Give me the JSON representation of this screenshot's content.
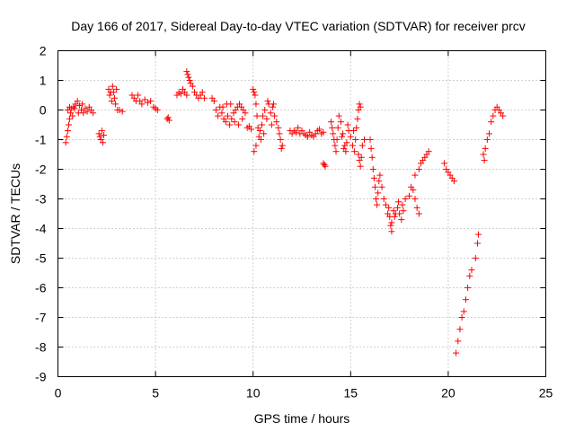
{
  "chart_data": {
    "type": "scatter",
    "title": "Day 166 of 2017, Sidereal Day-to-day VTEC variation (SDTVAR) for receiver prcv",
    "xlabel": "GPS time / hours",
    "ylabel": "SDTVAR / TECUs",
    "xlim": [
      0,
      25
    ],
    "ylim": [
      -9,
      2
    ],
    "xticks": [
      0,
      5,
      10,
      15,
      20,
      25
    ],
    "xtick_labels": [
      "0",
      "5",
      "10",
      "15",
      "20",
      "25"
    ],
    "yticks": [
      2,
      1,
      0,
      -1,
      -2,
      -3,
      -4,
      -5,
      -6,
      -7,
      -8,
      -9
    ],
    "ytick_labels": [
      "2",
      "1",
      "0",
      "-1",
      "-2",
      "-3",
      "-4",
      "-5",
      "-6",
      "-7",
      "-8",
      "-9"
    ],
    "grid": true,
    "marker": "+",
    "marker_color": "#ff0000",
    "series": [
      {
        "name": "prcv",
        "points": [
          [
            0.4,
            -1.1
          ],
          [
            0.45,
            -0.9
          ],
          [
            0.5,
            -0.7
          ],
          [
            0.55,
            -0.5
          ],
          [
            0.6,
            -0.3
          ],
          [
            0.65,
            -0.1
          ],
          [
            0.7,
            0.05
          ],
          [
            0.8,
            0.1
          ],
          [
            0.9,
            0.2
          ],
          [
            1.0,
            0.3
          ],
          [
            1.1,
            0.15
          ],
          [
            1.2,
            0.0
          ],
          [
            1.3,
            -0.1
          ],
          [
            1.4,
            0.05
          ],
          [
            1.5,
            -0.05
          ],
          [
            1.6,
            0.1
          ],
          [
            1.7,
            0.0
          ],
          [
            1.8,
            -0.1
          ],
          [
            0.5,
            0.0
          ],
          [
            0.6,
            0.1
          ],
          [
            0.75,
            -0.2
          ],
          [
            0.85,
            0.05
          ],
          [
            1.05,
            -0.1
          ],
          [
            1.25,
            0.2
          ],
          [
            2.1,
            -0.8
          ],
          [
            2.15,
            -0.9
          ],
          [
            2.2,
            -1.0
          ],
          [
            2.25,
            -0.7
          ],
          [
            2.3,
            -1.1
          ],
          [
            2.35,
            -0.85
          ],
          [
            2.6,
            0.7
          ],
          [
            2.65,
            0.5
          ],
          [
            2.7,
            0.6
          ],
          [
            2.8,
            0.8
          ],
          [
            2.9,
            0.4
          ],
          [
            3.0,
            0.7
          ],
          [
            2.75,
            0.3
          ],
          [
            2.85,
            0.6
          ],
          [
            2.95,
            0.2
          ],
          [
            3.05,
            0.0
          ],
          [
            3.15,
            0.0
          ],
          [
            3.3,
            -0.05
          ],
          [
            3.8,
            0.5
          ],
          [
            3.9,
            0.4
          ],
          [
            4.0,
            0.3
          ],
          [
            4.1,
            0.5
          ],
          [
            4.2,
            0.3
          ],
          [
            4.3,
            0.2
          ],
          [
            4.45,
            0.35
          ],
          [
            4.6,
            0.25
          ],
          [
            4.75,
            0.3
          ],
          [
            4.9,
            0.1
          ],
          [
            5.0,
            0.05
          ],
          [
            5.1,
            0.0
          ],
          [
            5.6,
            -0.3
          ],
          [
            5.65,
            -0.25
          ],
          [
            5.7,
            -0.35
          ],
          [
            6.1,
            0.5
          ],
          [
            6.2,
            0.6
          ],
          [
            6.3,
            0.55
          ],
          [
            6.4,
            0.7
          ],
          [
            6.5,
            0.6
          ],
          [
            6.6,
            0.5
          ],
          [
            6.6,
            1.3
          ],
          [
            6.65,
            1.2
          ],
          [
            6.7,
            1.1
          ],
          [
            6.75,
            1.0
          ],
          [
            6.8,
            0.9
          ],
          [
            6.9,
            0.8
          ],
          [
            7.0,
            0.6
          ],
          [
            7.1,
            0.5
          ],
          [
            7.2,
            0.4
          ],
          [
            7.3,
            0.5
          ],
          [
            7.4,
            0.6
          ],
          [
            7.5,
            0.4
          ],
          [
            7.9,
            0.4
          ],
          [
            8.0,
            0.3
          ],
          [
            8.1,
            0.0
          ],
          [
            8.2,
            -0.2
          ],
          [
            8.3,
            0.1
          ],
          [
            8.4,
            -0.1
          ],
          [
            8.5,
            -0.3
          ],
          [
            8.6,
            -0.4
          ],
          [
            8.7,
            -0.2
          ],
          [
            8.8,
            -0.5
          ],
          [
            8.9,
            -0.3
          ],
          [
            9.0,
            -0.1
          ],
          [
            9.1,
            0.0
          ],
          [
            9.2,
            0.1
          ],
          [
            9.3,
            0.2
          ],
          [
            9.4,
            0.1
          ],
          [
            9.5,
            0.0
          ],
          [
            9.6,
            -0.1
          ],
          [
            8.45,
            0.1
          ],
          [
            8.65,
            0.2
          ],
          [
            8.85,
            0.2
          ],
          [
            9.05,
            -0.4
          ],
          [
            9.25,
            -0.5
          ],
          [
            9.45,
            -0.3
          ],
          [
            9.7,
            -0.6
          ],
          [
            9.8,
            -0.55
          ],
          [
            9.9,
            -0.65
          ],
          [
            10.0,
            0.7
          ],
          [
            10.05,
            0.6
          ],
          [
            10.1,
            0.5
          ],
          [
            10.15,
            0.2
          ],
          [
            10.2,
            -0.2
          ],
          [
            10.25,
            -0.6
          ],
          [
            10.3,
            -0.9
          ],
          [
            10.35,
            -0.7
          ],
          [
            10.4,
            -1.0
          ],
          [
            10.45,
            -0.5
          ],
          [
            10.5,
            -0.2
          ],
          [
            10.6,
            0.0
          ],
          [
            10.7,
            -0.3
          ],
          [
            10.8,
            0.2
          ],
          [
            10.9,
            -0.1
          ],
          [
            11.0,
            0.1
          ],
          [
            11.1,
            -0.2
          ],
          [
            11.2,
            -0.4
          ],
          [
            10.05,
            -1.4
          ],
          [
            10.15,
            -1.2
          ],
          [
            10.55,
            -0.8
          ],
          [
            10.75,
            0.3
          ],
          [
            10.95,
            -0.5
          ],
          [
            11.05,
            0.2
          ],
          [
            11.3,
            -0.6
          ],
          [
            11.35,
            -0.8
          ],
          [
            11.4,
            -1.0
          ],
          [
            11.45,
            -1.3
          ],
          [
            11.5,
            -1.2
          ],
          [
            11.9,
            -0.7
          ],
          [
            12.0,
            -0.8
          ],
          [
            12.1,
            -0.7
          ],
          [
            12.2,
            -0.75
          ],
          [
            12.3,
            -0.6
          ],
          [
            12.4,
            -0.8
          ],
          [
            12.5,
            -0.7
          ],
          [
            12.6,
            -0.8
          ],
          [
            12.7,
            -0.85
          ],
          [
            12.8,
            -0.9
          ],
          [
            12.9,
            -0.75
          ],
          [
            13.0,
            -0.85
          ],
          [
            13.1,
            -0.9
          ],
          [
            13.2,
            -0.8
          ],
          [
            13.3,
            -0.7
          ],
          [
            13.4,
            -0.65
          ],
          [
            13.5,
            -0.8
          ],
          [
            13.6,
            -0.75
          ],
          [
            13.6,
            -1.8
          ],
          [
            13.7,
            -1.9
          ],
          [
            13.65,
            -1.85
          ],
          [
            14.0,
            -0.4
          ],
          [
            14.05,
            -0.6
          ],
          [
            14.1,
            -0.8
          ],
          [
            14.15,
            -1.0
          ],
          [
            14.2,
            -1.2
          ],
          [
            14.25,
            -1.4
          ],
          [
            14.3,
            -1.0
          ],
          [
            14.35,
            -0.6
          ],
          [
            14.4,
            -0.2
          ],
          [
            14.5,
            -0.4
          ],
          [
            14.6,
            -0.8
          ],
          [
            14.7,
            -1.2
          ],
          [
            14.75,
            -1.4
          ],
          [
            14.8,
            -1.1
          ],
          [
            14.9,
            -0.7
          ],
          [
            15.0,
            -0.9
          ],
          [
            15.1,
            -1.2
          ],
          [
            15.2,
            -1.4
          ],
          [
            15.25,
            -1.0
          ],
          [
            15.3,
            -0.6
          ],
          [
            15.35,
            -0.3
          ],
          [
            15.4,
            0.0
          ],
          [
            15.45,
            0.2
          ],
          [
            15.5,
            0.1
          ],
          [
            15.4,
            -1.5
          ],
          [
            15.45,
            -1.7
          ],
          [
            15.5,
            -1.9
          ],
          [
            15.55,
            -1.6
          ],
          [
            15.6,
            -1.2
          ],
          [
            15.7,
            -1.0
          ],
          [
            14.55,
            -0.9
          ],
          [
            14.65,
            -1.3
          ],
          [
            14.85,
            -0.5
          ],
          [
            15.15,
            -0.7
          ],
          [
            16.0,
            -1.0
          ],
          [
            16.05,
            -1.3
          ],
          [
            16.1,
            -1.6
          ],
          [
            16.15,
            -2.0
          ],
          [
            16.2,
            -2.3
          ],
          [
            16.25,
            -2.6
          ],
          [
            16.3,
            -3.0
          ],
          [
            16.35,
            -3.2
          ],
          [
            16.4,
            -2.8
          ],
          [
            16.45,
            -2.4
          ],
          [
            16.5,
            -2.2
          ],
          [
            16.6,
            -2.6
          ],
          [
            16.7,
            -3.0
          ],
          [
            16.8,
            -3.2
          ],
          [
            16.9,
            -3.5
          ],
          [
            17.0,
            -3.6
          ],
          [
            17.1,
            -3.8
          ],
          [
            17.2,
            -3.4
          ],
          [
            17.3,
            -3.5
          ],
          [
            17.4,
            -3.3
          ],
          [
            17.5,
            -3.5
          ],
          [
            17.6,
            -3.7
          ],
          [
            17.7,
            -3.4
          ],
          [
            17.8,
            -3.0
          ],
          [
            17.1,
            -4.1
          ],
          [
            17.05,
            -3.9
          ],
          [
            16.95,
            -3.3
          ],
          [
            17.25,
            -3.6
          ],
          [
            17.45,
            -3.1
          ],
          [
            17.65,
            -3.2
          ],
          [
            18.0,
            -2.9
          ],
          [
            18.1,
            -2.6
          ],
          [
            18.2,
            -2.7
          ],
          [
            18.3,
            -3.0
          ],
          [
            18.4,
            -3.3
          ],
          [
            18.5,
            -3.5
          ],
          [
            18.3,
            -2.2
          ],
          [
            18.5,
            -2.0
          ],
          [
            18.6,
            -1.8
          ],
          [
            18.7,
            -1.7
          ],
          [
            18.8,
            -1.6
          ],
          [
            18.9,
            -1.5
          ],
          [
            19.0,
            -1.4
          ],
          [
            19.8,
            -1.8
          ],
          [
            19.9,
            -2.0
          ],
          [
            20.0,
            -2.1
          ],
          [
            20.1,
            -2.2
          ],
          [
            20.2,
            -2.3
          ],
          [
            20.3,
            -2.4
          ],
          [
            20.4,
            -8.2
          ],
          [
            20.5,
            -7.8
          ],
          [
            20.6,
            -7.4
          ],
          [
            20.7,
            -7.0
          ],
          [
            20.8,
            -6.8
          ],
          [
            20.9,
            -6.4
          ],
          [
            21.0,
            -6.0
          ],
          [
            21.1,
            -5.6
          ],
          [
            21.2,
            -5.4
          ],
          [
            21.4,
            -5.0
          ],
          [
            21.5,
            -4.5
          ],
          [
            21.55,
            -4.2
          ],
          [
            21.8,
            -1.5
          ],
          [
            21.85,
            -1.7
          ],
          [
            21.9,
            -1.3
          ],
          [
            22.0,
            -1.0
          ],
          [
            22.1,
            -0.8
          ],
          [
            22.2,
            -0.4
          ],
          [
            22.3,
            -0.2
          ],
          [
            22.4,
            0.0
          ],
          [
            22.5,
            0.1
          ],
          [
            22.6,
            0.0
          ],
          [
            22.7,
            -0.1
          ],
          [
            22.8,
            -0.2
          ]
        ]
      }
    ]
  }
}
